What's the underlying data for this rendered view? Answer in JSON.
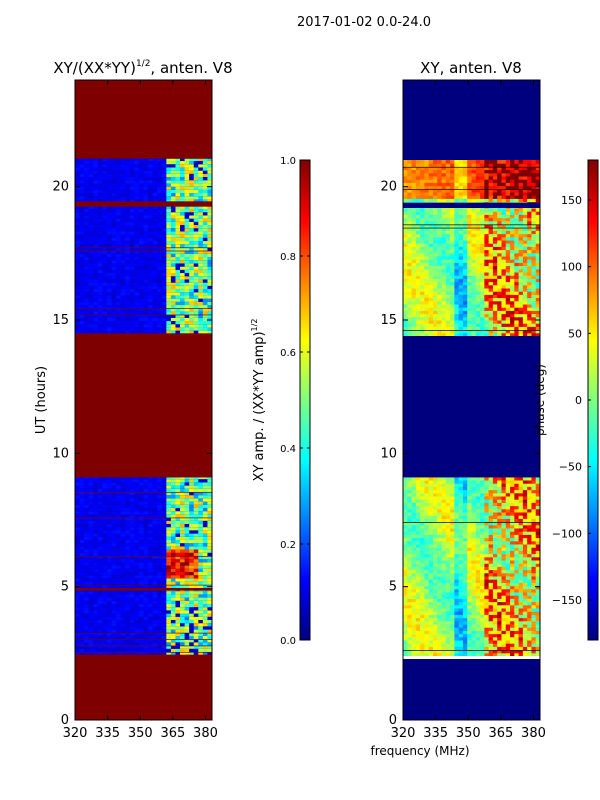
{
  "figure": {
    "suptitle": "2017-01-02 0.0-24.0",
    "shared_xlabel": "frequency (MHz)"
  },
  "colors": {
    "jet": [
      "#00007f",
      "#0000ff",
      "#007fff",
      "#00ffff",
      "#7fff7f",
      "#ffff00",
      "#ff7f00",
      "#ff0000",
      "#7f0000"
    ],
    "flag_left": "#7f0000",
    "flag_right": "#00007f"
  },
  "chart_data": [
    {
      "type": "heatmap",
      "panel": "left",
      "title_base": "XY/(XX*YY)",
      "title_sup": "1/2",
      "title_tail": ", anten. V8",
      "xlabel": "",
      "ylabel": "UT (hours)",
      "xlim": [
        320,
        383
      ],
      "ylim": [
        0,
        24
      ],
      "xticks": [
        320,
        335,
        350,
        365,
        380
      ],
      "yticks": [
        0,
        5,
        10,
        15,
        20
      ],
      "colorbar": {
        "label_base": "XY amp. / (XX*YY amp)",
        "label_sup": "1/2",
        "vmin": 0.0,
        "vmax": 1.0,
        "ticks": [
          "0.0",
          "0.2",
          "0.4",
          "0.6",
          "0.8",
          "1.0"
        ]
      },
      "flagged_hours": [
        [
          0,
          2.45
        ],
        [
          9.1,
          14.5
        ],
        [
          21.05,
          24
        ],
        [
          19.25,
          19.45
        ],
        [
          4.85,
          4.95
        ]
      ],
      "data_blocks": [
        [
          2.45,
          9.1
        ],
        [
          14.5,
          21.05
        ]
      ],
      "strong_band_mhz": [
        363,
        382
      ],
      "hot_patch": {
        "hours": [
          5.3,
          6.4
        ],
        "mhz": [
          363,
          377
        ]
      }
    },
    {
      "type": "heatmap",
      "panel": "right",
      "title": "XY, anten. V8",
      "xlabel": "frequency (MHz)",
      "ylabel": "",
      "xlim": [
        320,
        383
      ],
      "ylim": [
        0,
        24
      ],
      "xticks": [
        320,
        335,
        350,
        365,
        380
      ],
      "yticks": [
        0,
        5,
        10,
        15,
        20
      ],
      "colorbar": {
        "label": "phase (deg)",
        "vmin": -180,
        "vmax": 180,
        "ticks": [
          "150",
          "100",
          "50",
          "0",
          "−50",
          "−100",
          "−150"
        ]
      },
      "flagged_hours": [
        [
          0,
          2.4
        ],
        [
          9.1,
          14.4
        ],
        [
          21.0,
          24
        ],
        [
          19.2,
          19.4
        ]
      ],
      "data_blocks": [
        [
          2.4,
          9.1
        ],
        [
          14.4,
          21.0
        ]
      ]
    }
  ]
}
